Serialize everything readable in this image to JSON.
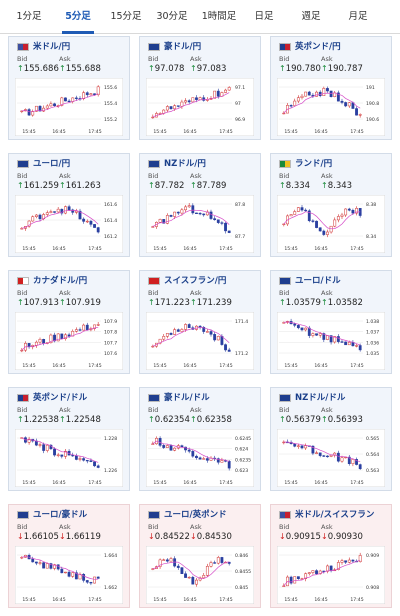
{
  "tabs": [
    {
      "label": "1分足",
      "active": false
    },
    {
      "label": "5分足",
      "active": true
    },
    {
      "label": "15分足",
      "active": false
    },
    {
      "label": "30分足",
      "active": false
    },
    {
      "label": "1時間足",
      "active": false
    },
    {
      "label": "日足",
      "active": false
    },
    {
      "label": "週足",
      "active": false
    },
    {
      "label": "月足",
      "active": false
    }
  ],
  "labels": {
    "bid": "Bid",
    "ask": "Ask"
  },
  "colors": {
    "up": "#1a8a3a",
    "down": "#d02020",
    "candle_up": "#d03030",
    "candle_down": "#2a3fa0",
    "ma": "#d64cc8"
  },
  "cards": [
    {
      "pair": "米ドル/円",
      "flag": "us",
      "dir": "up",
      "bid": "155.686",
      "ask": "155.688",
      "y_ticks": [
        "155.6",
        "155.4",
        "155.2"
      ],
      "x_ticks": [
        "15:45",
        "16:45",
        "17:45"
      ],
      "trend": "up"
    },
    {
      "pair": "豪ドル/円",
      "flag": "au",
      "dir": "up",
      "bid": "97.078",
      "ask": "97.083",
      "y_ticks": [
        "97.1",
        "97",
        "96.9"
      ],
      "x_ticks": [
        "15:45",
        "16:45",
        "17:45"
      ],
      "trend": "up"
    },
    {
      "pair": "英ポンド/円",
      "flag": "gb",
      "dir": "up",
      "bid": "190.780",
      "ask": "190.787",
      "y_ticks": [
        "191",
        "190.8",
        "190.6"
      ],
      "x_ticks": [
        "15:45",
        "16:45",
        "17:45"
      ],
      "trend": "hump"
    },
    {
      "pair": "ユーロ/円",
      "flag": "eu",
      "dir": "up",
      "bid": "161.259",
      "ask": "161.263",
      "y_ticks": [
        "161.6",
        "161.4",
        "161.2"
      ],
      "x_ticks": [
        "15:45",
        "16:45",
        "17:45"
      ],
      "trend": "hump"
    },
    {
      "pair": "NZドル/円",
      "flag": "nz",
      "dir": "up",
      "bid": "87.782",
      "ask": "87.789",
      "y_ticks": [
        "87.8",
        "87.7"
      ],
      "x_ticks": [
        "15:45",
        "16:45",
        "17:45"
      ],
      "trend": "hump"
    },
    {
      "pair": "ランド/円",
      "flag": "za",
      "dir": "up",
      "bid": "8.334",
      "ask": "8.343",
      "y_ticks": [
        "8.38",
        "8.34"
      ],
      "x_ticks": [
        "15:45",
        "16:45",
        "17:45"
      ],
      "trend": "volatile"
    },
    {
      "pair": "カナダドル/円",
      "flag": "ca",
      "dir": "up",
      "bid": "107.913",
      "ask": "107.919",
      "y_ticks": [
        "107.9",
        "107.8",
        "107.7",
        "107.6"
      ],
      "x_ticks": [
        "15:45",
        "16:45",
        "17:45"
      ],
      "trend": "up"
    },
    {
      "pair": "スイスフラン/円",
      "flag": "ch",
      "dir": "up",
      "bid": "171.223",
      "ask": "171.239",
      "y_ticks": [
        "171.4",
        "171.2"
      ],
      "x_ticks": [
        "15:45",
        "16:45",
        "17:45"
      ],
      "trend": "hump"
    },
    {
      "pair": "ユーロ/ドル",
      "flag": "eu",
      "dir": "up",
      "bid": "1.03579",
      "ask": "1.03582",
      "y_ticks": [
        "1.038",
        "1.037",
        "1.036",
        "1.035"
      ],
      "x_ticks": [
        "15:45",
        "16:45",
        "17:45"
      ],
      "trend": "down"
    },
    {
      "pair": "英ポンド/ドル",
      "flag": "gb",
      "dir": "up",
      "bid": "1.22538",
      "ask": "1.22548",
      "y_ticks": [
        "1.228",
        "1.226"
      ],
      "x_ticks": [
        "15:45",
        "16:45",
        "17:45"
      ],
      "trend": "down"
    },
    {
      "pair": "豪ドル/ドル",
      "flag": "au",
      "dir": "up",
      "bid": "0.62354",
      "ask": "0.62358",
      "y_ticks": [
        "0.6245",
        "0.624",
        "0.6235",
        "0.623"
      ],
      "x_ticks": [
        "15:45",
        "16:45",
        "17:45"
      ],
      "trend": "down"
    },
    {
      "pair": "NZドル/ドル",
      "flag": "nz",
      "dir": "up",
      "bid": "0.56379",
      "ask": "0.56393",
      "y_ticks": [
        "0.565",
        "0.564",
        "0.563"
      ],
      "x_ticks": [
        "15:45",
        "16:45",
        "17:45"
      ],
      "trend": "down"
    },
    {
      "pair": "ユーロ/豪ドル",
      "flag": "eu",
      "dir": "down",
      "bid": "1.66105",
      "ask": "1.66119",
      "y_ticks": [
        "1.664",
        "1.662"
      ],
      "x_ticks": [
        "15:45",
        "16:45",
        "17:45"
      ],
      "trend": "down"
    },
    {
      "pair": "ユーロ/英ポンド",
      "flag": "eu",
      "dir": "down",
      "bid": "0.84522",
      "ask": "0.84530",
      "y_ticks": [
        "0.846",
        "0.8455",
        "0.845"
      ],
      "x_ticks": [
        "15:45",
        "16:45",
        "17:45"
      ],
      "trend": "volatile"
    },
    {
      "pair": "米ドル/スイスフラン",
      "flag": "us",
      "dir": "down",
      "bid": "0.90915",
      "ask": "0.90930",
      "y_ticks": [
        "0.909",
        "0.908"
      ],
      "x_ticks": [
        "15:45",
        "16:45",
        "17:45"
      ],
      "trend": "up"
    }
  ]
}
